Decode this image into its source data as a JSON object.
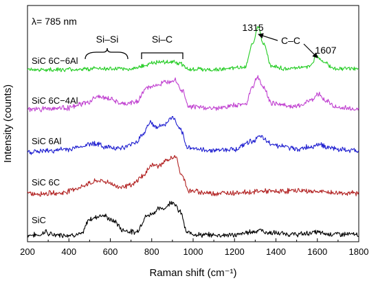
{
  "chart_data": {
    "type": "line",
    "title": "",
    "xlabel": "Raman shift (cm⁻¹)",
    "ylabel": "Intensity (counts)",
    "xlim": [
      200,
      1800
    ],
    "x_ticks": [
      "200",
      "400",
      "600",
      "800",
      "1000",
      "1200",
      "1400",
      "1600",
      "1800"
    ],
    "y_tick_labels": false,
    "grid": false,
    "legend": "none",
    "annotations": {
      "wavelength": "λ= 785 nm",
      "si_si": "Si–Si",
      "si_c": "Si–C",
      "c_c": "C–C",
      "peak_1315": "1315",
      "peak_1607": "1607"
    },
    "series": [
      {
        "name": "SiC",
        "color": "#000000",
        "points": [
          [
            200,
            0.05
          ],
          [
            260,
            0.06
          ],
          [
            290,
            0.42
          ],
          [
            300,
            0.1
          ],
          [
            380,
            0.06
          ],
          [
            460,
            0.1
          ],
          [
            500,
            1.5
          ],
          [
            560,
            1.85
          ],
          [
            620,
            1.3
          ],
          [
            660,
            0.5
          ],
          [
            720,
            0.3
          ],
          [
            780,
            1.8
          ],
          [
            810,
            2.1
          ],
          [
            830,
            2.4
          ],
          [
            860,
            2.5
          ],
          [
            900,
            3.1
          ],
          [
            940,
            2.1
          ],
          [
            970,
            0.25
          ],
          [
            1050,
            0.05
          ],
          [
            1200,
            0.05
          ],
          [
            1290,
            0.35
          ],
          [
            1320,
            0.5
          ],
          [
            1360,
            0.25
          ],
          [
            1500,
            0.1
          ],
          [
            1600,
            0.3
          ],
          [
            1640,
            0.15
          ],
          [
            1800,
            0.1
          ]
        ]
      },
      {
        "name": "SiC 6C",
        "color": "#b22222",
        "points": [
          [
            200,
            0.05
          ],
          [
            360,
            0.12
          ],
          [
            440,
            0.55
          ],
          [
            500,
            1.0
          ],
          [
            540,
            1.25
          ],
          [
            580,
            1.15
          ],
          [
            640,
            0.7
          ],
          [
            700,
            0.8
          ],
          [
            760,
            1.7
          ],
          [
            800,
            2.7
          ],
          [
            830,
            2.6
          ],
          [
            880,
            3.1
          ],
          [
            910,
            3.5
          ],
          [
            950,
            1.6
          ],
          [
            980,
            0.3
          ],
          [
            1100,
            0.1
          ],
          [
            1280,
            0.2
          ],
          [
            1320,
            0.3
          ],
          [
            1400,
            0.25
          ],
          [
            1500,
            0.35
          ],
          [
            1600,
            0.25
          ],
          [
            1700,
            0.12
          ],
          [
            1800,
            0.1
          ]
        ]
      },
      {
        "name": "SiC 6Al",
        "color": "#1f1fd0",
        "points": [
          [
            200,
            0.05
          ],
          [
            300,
            0.15
          ],
          [
            400,
            0.3
          ],
          [
            460,
            0.55
          ],
          [
            520,
            0.85
          ],
          [
            580,
            0.5
          ],
          [
            660,
            0.4
          ],
          [
            720,
            0.9
          ],
          [
            760,
            1.7
          ],
          [
            790,
            2.75
          ],
          [
            820,
            2.3
          ],
          [
            860,
            2.5
          ],
          [
            900,
            3.2
          ],
          [
            940,
            2.0
          ],
          [
            970,
            0.5
          ],
          [
            1060,
            0.2
          ],
          [
            1200,
            0.3
          ],
          [
            1280,
            1.0
          ],
          [
            1320,
            1.4
          ],
          [
            1380,
            0.8
          ],
          [
            1420,
            0.6
          ],
          [
            1500,
            0.3
          ],
          [
            1560,
            0.5
          ],
          [
            1610,
            0.75
          ],
          [
            1660,
            0.4
          ],
          [
            1740,
            0.2
          ],
          [
            1800,
            0.15
          ]
        ]
      },
      {
        "name": "SiC 6C−4Al",
        "color": "#c040d0",
        "points": [
          [
            200,
            0.05
          ],
          [
            400,
            0.2
          ],
          [
            480,
            0.6
          ],
          [
            540,
            1.2
          ],
          [
            600,
            1.0
          ],
          [
            660,
            0.5
          ],
          [
            720,
            0.7
          ],
          [
            780,
            2.0
          ],
          [
            830,
            2.3
          ],
          [
            880,
            2.6
          ],
          [
            910,
            2.8
          ],
          [
            950,
            1.7
          ],
          [
            980,
            0.3
          ],
          [
            1100,
            0.15
          ],
          [
            1250,
            0.5
          ],
          [
            1290,
            2.2
          ],
          [
            1310,
            3.0
          ],
          [
            1340,
            2.0
          ],
          [
            1380,
            0.6
          ],
          [
            1500,
            0.3
          ],
          [
            1580,
            1.0
          ],
          [
            1605,
            1.5
          ],
          [
            1640,
            0.8
          ],
          [
            1700,
            0.2
          ],
          [
            1800,
            0.1
          ]
        ]
      },
      {
        "name": "SiC 6C−6Al",
        "color": "#22cc22",
        "points": [
          [
            200,
            0.03
          ],
          [
            400,
            0.05
          ],
          [
            480,
            0.1
          ],
          [
            540,
            0.2
          ],
          [
            600,
            0.12
          ],
          [
            700,
            0.12
          ],
          [
            760,
            0.5
          ],
          [
            800,
            0.8
          ],
          [
            860,
            0.9
          ],
          [
            900,
            1.0
          ],
          [
            940,
            0.7
          ],
          [
            980,
            0.1
          ],
          [
            1100,
            0.05
          ],
          [
            1250,
            0.3
          ],
          [
            1290,
            3.2
          ],
          [
            1315,
            5.0
          ],
          [
            1340,
            3.0
          ],
          [
            1380,
            0.4
          ],
          [
            1450,
            0.15
          ],
          [
            1560,
            0.4
          ],
          [
            1600,
            1.55
          ],
          [
            1630,
            0.9
          ],
          [
            1680,
            0.2
          ],
          [
            1800,
            0.1
          ]
        ]
      }
    ]
  }
}
